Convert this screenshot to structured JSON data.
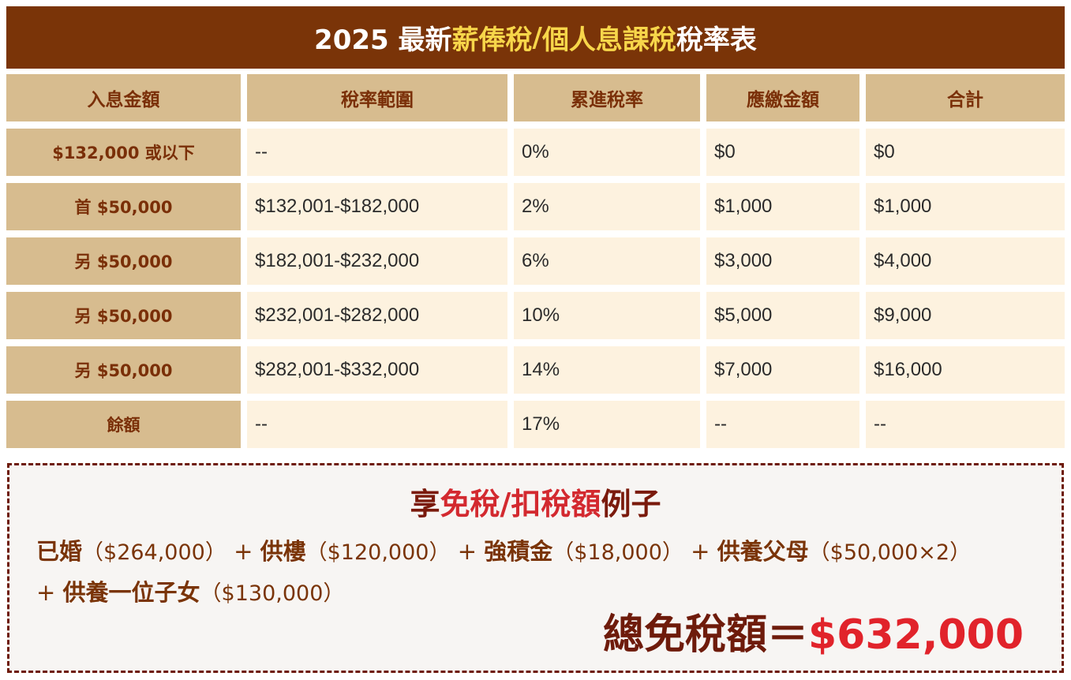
{
  "title": {
    "prefix": "2025 最新",
    "highlight1": "薪俸稅",
    "slash": "/",
    "highlight2": "個人息課稅",
    "suffix": "稅率表"
  },
  "table": {
    "headers": [
      "入息金額",
      "稅率範圍",
      "累進稅率",
      "應繳金額",
      "合計"
    ],
    "rows": [
      {
        "label": "$132,000 或以下",
        "range": "--",
        "rate": "0%",
        "due": "$0",
        "total": "$0"
      },
      {
        "label": "首 $50,000",
        "range": "$132,001-$182,000",
        "rate": "2%",
        "due": "$1,000",
        "total": "$1,000"
      },
      {
        "label": "另 $50,000",
        "range": "$182,001-$232,000",
        "rate": "6%",
        "due": "$3,000",
        "total": "$4,000"
      },
      {
        "label": "另 $50,000",
        "range": "$232,001-$282,000",
        "rate": "10%",
        "due": "$5,000",
        "total": "$9,000"
      },
      {
        "label": "另 $50,000",
        "range": "$282,001-$332,000",
        "rate": "14%",
        "due": "$7,000",
        "total": "$16,000"
      },
      {
        "label": "餘額",
        "range": "--",
        "rate": "17%",
        "due": "--",
        "total": "--"
      }
    ]
  },
  "example": {
    "title_a": "享",
    "title_red": "免稅/扣稅額",
    "title_b": "例子",
    "items": [
      {
        "prefix": "",
        "name": "已婚",
        "amount": "（$264,000）"
      },
      {
        "prefix": "+",
        "name": "供樓",
        "amount": "（$120,000）"
      },
      {
        "prefix": "+",
        "name": "強積金",
        "amount": "（$18,000）"
      },
      {
        "prefix": "+",
        "name": "供養父母",
        "amount": "（$50,000×2）"
      },
      {
        "prefix": "+",
        "name": "供養一位子女",
        "amount": "（$130,000）"
      }
    ],
    "total_label": "總免稅額＝",
    "total_value": "$632,000"
  },
  "colors": {
    "banner_bg": "#7a3408",
    "highlight": "#f7d64a",
    "header_bg": "#d7bc8f",
    "cell_bg": "#fdf2df",
    "accent_red": "#e1232b"
  }
}
